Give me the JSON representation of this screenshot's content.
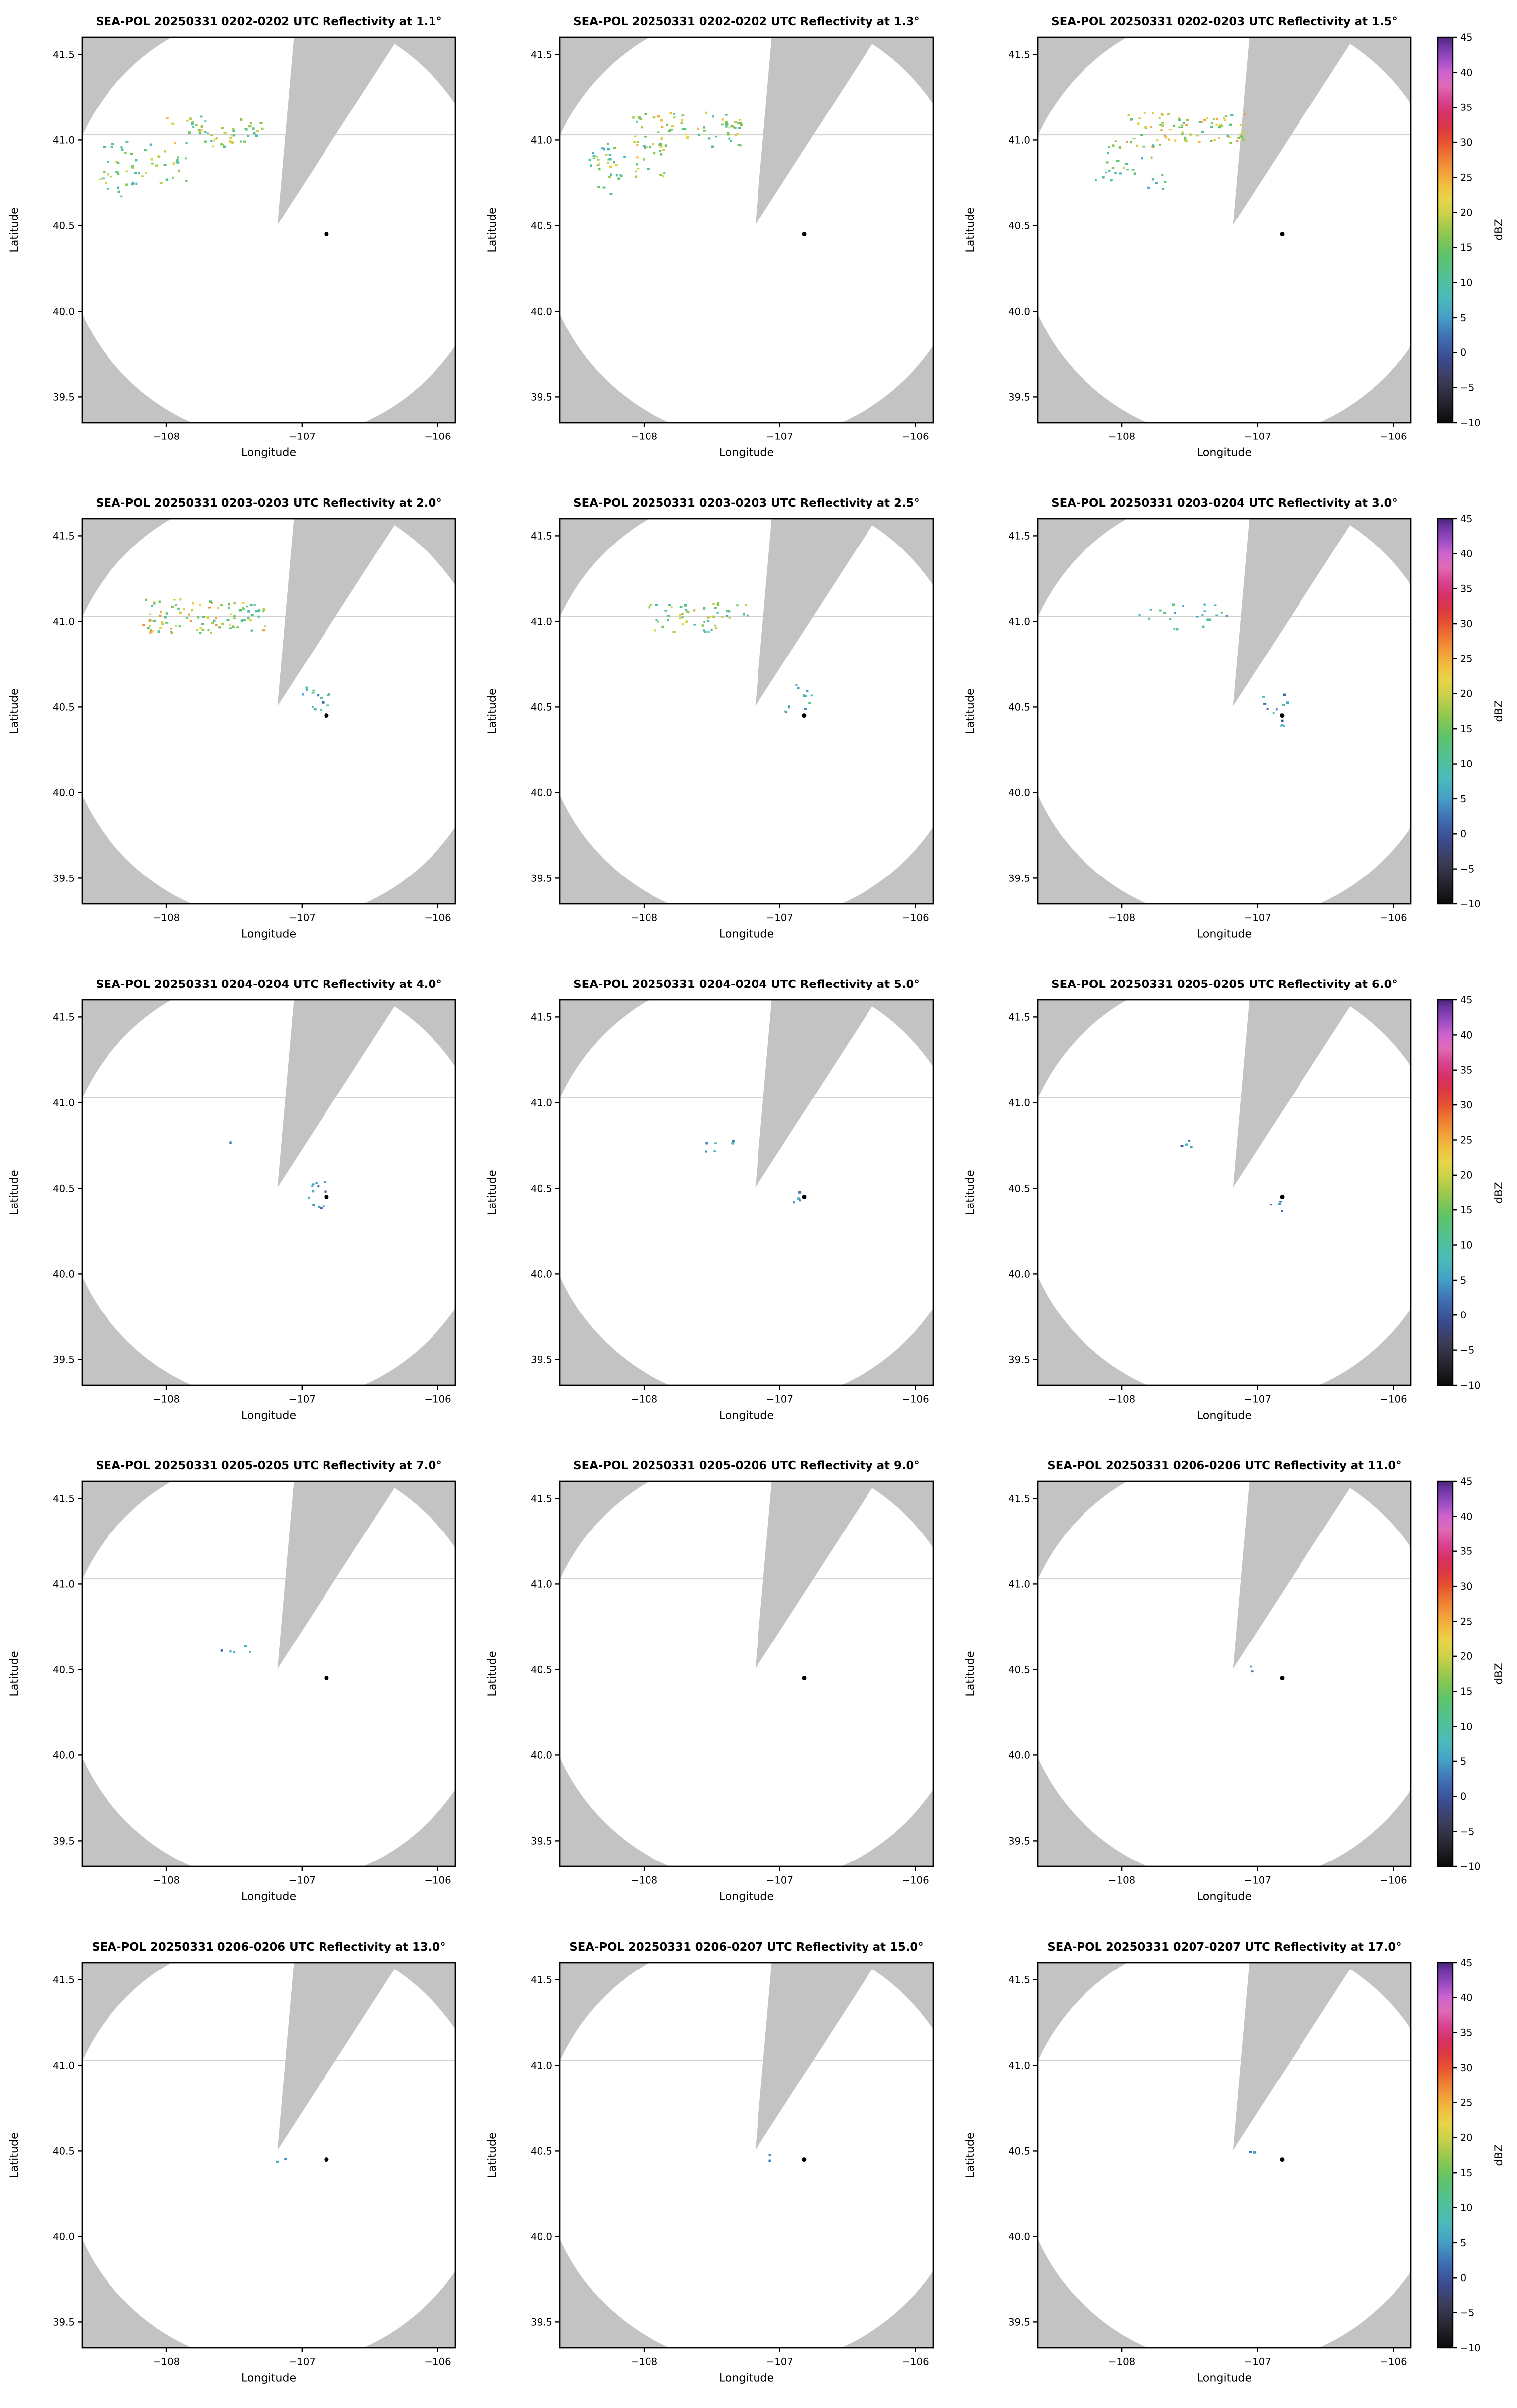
{
  "colors": {
    "panel_bg": "#c3c3c3",
    "coverage": "#ffffff",
    "frame": "#000000",
    "text": "#000000",
    "site_marker": "#000000",
    "map_line": "#d2d2d2"
  },
  "chart_data": {
    "type": "heatmap",
    "description": "SEA-POL radar PPI reflectivity, 15 elevation-angle panels (5 rows x 3 cols), gray background outside circular coverage area with a blocked wedge sector toward the NNE, black site marker dot in each panel",
    "layout": {
      "rows": 5,
      "cols": 3,
      "legend_position": "right-of-each-row"
    },
    "axes": {
      "xlabel": "Longitude",
      "ylabel": "Latitude",
      "xlim": [
        -108.62,
        -105.87
      ],
      "ylim": [
        39.35,
        41.6
      ],
      "xticks": [
        -108,
        -107,
        -106
      ],
      "xtick_labels": [
        "−108",
        "−107",
        "−106"
      ],
      "yticks": [
        39.5,
        40.0,
        40.5,
        41.0,
        41.5
      ],
      "ytick_labels": [
        "39.5",
        "40.0",
        "40.5",
        "41.0",
        "41.5"
      ]
    },
    "radar": {
      "coverage_center_lon": -107.18,
      "coverage_center_lat": 40.505,
      "coverage_radius_lon_deg": 1.58,
      "coverage_radius_lat_deg": 1.26,
      "blocked_sector_azimuth_deg": [
        5,
        33
      ],
      "site_lon": -106.82,
      "site_lat": 40.45,
      "map_line_lat": 41.03
    },
    "colorbar": {
      "label": "dBZ",
      "min": -10,
      "max": 45,
      "ticks": [
        45,
        40,
        35,
        30,
        25,
        20,
        15,
        10,
        5,
        0,
        -5,
        -10
      ],
      "tick_labels": [
        "45",
        "40",
        "35",
        "30",
        "25",
        "20",
        "15",
        "10",
        "5",
        "0",
        "−5",
        "−10"
      ],
      "stops": [
        {
          "v": -10,
          "c": "#0a0a0a"
        },
        {
          "v": -7,
          "c": "#262630"
        },
        {
          "v": -4,
          "c": "#3c3c58"
        },
        {
          "v": -1,
          "c": "#3b4b8e"
        },
        {
          "v": 2,
          "c": "#3f6cb4"
        },
        {
          "v": 5,
          "c": "#459fc6"
        },
        {
          "v": 8,
          "c": "#4bbcba"
        },
        {
          "v": 11,
          "c": "#52c193"
        },
        {
          "v": 14,
          "c": "#5ec46a"
        },
        {
          "v": 16,
          "c": "#80c655"
        },
        {
          "v": 18,
          "c": "#a7ca4c"
        },
        {
          "v": 20,
          "c": "#cdd14a"
        },
        {
          "v": 22,
          "c": "#e8d44a"
        },
        {
          "v": 24,
          "c": "#f2bc40"
        },
        {
          "v": 26,
          "c": "#f29c3a"
        },
        {
          "v": 28,
          "c": "#ee7a33"
        },
        {
          "v": 30,
          "c": "#e7532f"
        },
        {
          "v": 32,
          "c": "#dd3843"
        },
        {
          "v": 34,
          "c": "#d63166"
        },
        {
          "v": 36,
          "c": "#d84391"
        },
        {
          "v": 38,
          "c": "#e06ab4"
        },
        {
          "v": 40,
          "c": "#cf64cf"
        },
        {
          "v": 42,
          "c": "#9a4bc4"
        },
        {
          "v": 44,
          "c": "#6b34a0"
        },
        {
          "v": 45,
          "c": "#4b2478"
        }
      ]
    },
    "panels": [
      {
        "title": "SEA-POL 20250331 0202-0202 UTC Reflectivity at 1.1°",
        "echo_clusters": [
          {
            "lon": -107.7,
            "lat": 41.05,
            "w": 0.3,
            "h": 0.09,
            "n": 45,
            "dbz": [
              8,
              24
            ]
          },
          {
            "lon": -107.38,
            "lat": 41.06,
            "w": 0.1,
            "h": 0.05,
            "n": 12,
            "dbz": [
              8,
              20
            ]
          },
          {
            "lon": -108.22,
            "lat": 40.85,
            "w": 0.28,
            "h": 0.14,
            "n": 40,
            "dbz": [
              8,
              22
            ]
          },
          {
            "lon": -107.95,
            "lat": 40.83,
            "w": 0.1,
            "h": 0.07,
            "n": 10,
            "dbz": [
              8,
              18
            ]
          },
          {
            "lon": -108.28,
            "lat": 40.71,
            "w": 0.08,
            "h": 0.04,
            "n": 6,
            "dbz": [
              5,
              15
            ]
          }
        ]
      },
      {
        "title": "SEA-POL 20250331 0202-0202 UTC Reflectivity at 1.3°",
        "echo_clusters": [
          {
            "lon": -107.68,
            "lat": 41.06,
            "w": 0.4,
            "h": 0.1,
            "n": 60,
            "dbz": [
              8,
              26
            ]
          },
          {
            "lon": -108.1,
            "lat": 40.88,
            "w": 0.3,
            "h": 0.12,
            "n": 40,
            "dbz": [
              8,
              24
            ]
          },
          {
            "lon": -108.25,
            "lat": 40.74,
            "w": 0.1,
            "h": 0.06,
            "n": 8,
            "dbz": [
              5,
              15
            ]
          },
          {
            "lon": -107.35,
            "lat": 41.08,
            "w": 0.08,
            "h": 0.05,
            "n": 8,
            "dbz": [
              8,
              18
            ]
          },
          {
            "lon": -108.33,
            "lat": 40.93,
            "w": 0.08,
            "h": 0.05,
            "n": 8,
            "dbz": [
              5,
              15
            ]
          }
        ]
      },
      {
        "title": "SEA-POL 20250331 0202-0203 UTC Reflectivity at 1.5°",
        "echo_clusters": [
          {
            "lon": -107.52,
            "lat": 41.06,
            "w": 0.45,
            "h": 0.1,
            "n": 85,
            "dbz": [
              10,
              28
            ]
          },
          {
            "lon": -107.95,
            "lat": 40.9,
            "w": 0.18,
            "h": 0.1,
            "n": 18,
            "dbz": [
              8,
              20
            ]
          },
          {
            "lon": -108.12,
            "lat": 40.8,
            "w": 0.08,
            "h": 0.05,
            "n": 6,
            "dbz": [
              5,
              15
            ]
          },
          {
            "lon": -107.75,
            "lat": 40.75,
            "w": 0.08,
            "h": 0.05,
            "n": 6,
            "dbz": [
              5,
              15
            ]
          }
        ]
      },
      {
        "title": "SEA-POL 20250331 0203-0203 UTC Reflectivity at 2.0°",
        "echo_clusters": [
          {
            "lon": -107.72,
            "lat": 41.03,
            "w": 0.45,
            "h": 0.1,
            "n": 95,
            "dbz": [
              10,
              28
            ]
          },
          {
            "lon": -107.38,
            "lat": 41.05,
            "w": 0.08,
            "h": 0.05,
            "n": 8,
            "dbz": [
              8,
              18
            ]
          },
          {
            "lon": -106.88,
            "lat": 40.55,
            "w": 0.12,
            "h": 0.08,
            "n": 14,
            "dbz": [
              2,
              14
            ]
          }
        ]
      },
      {
        "title": "SEA-POL 20250331 0203-0203 UTC Reflectivity at 2.5°",
        "echo_clusters": [
          {
            "lon": -107.6,
            "lat": 41.02,
            "w": 0.38,
            "h": 0.09,
            "n": 55,
            "dbz": [
              6,
              22
            ]
          },
          {
            "lon": -106.88,
            "lat": 40.55,
            "w": 0.12,
            "h": 0.08,
            "n": 12,
            "dbz": [
              2,
              14
            ]
          }
        ]
      },
      {
        "title": "SEA-POL 20250331 0203-0204 UTC Reflectivity at 3.0°",
        "echo_clusters": [
          {
            "lon": -107.55,
            "lat": 41.03,
            "w": 0.35,
            "h": 0.08,
            "n": 22,
            "dbz": [
              4,
              16
            ]
          },
          {
            "lon": -106.88,
            "lat": 40.52,
            "w": 0.1,
            "h": 0.06,
            "n": 8,
            "dbz": [
              0,
              12
            ]
          },
          {
            "lon": -106.84,
            "lat": 40.42,
            "w": 0.06,
            "h": 0.04,
            "n": 5,
            "dbz": [
              0,
              10
            ]
          }
        ]
      },
      {
        "title": "SEA-POL 20250331 0204-0204 UTC Reflectivity at 4.0°",
        "echo_clusters": [
          {
            "lon": -106.9,
            "lat": 40.46,
            "w": 0.1,
            "h": 0.09,
            "n": 12,
            "dbz": [
              0,
              8
            ]
          },
          {
            "lon": -107.55,
            "lat": 40.78,
            "w": 0.04,
            "h": 0.02,
            "n": 2,
            "dbz": [
              0,
              6
            ]
          }
        ]
      },
      {
        "title": "SEA-POL 20250331 0204-0204 UTC Reflectivity at 5.0°",
        "echo_clusters": [
          {
            "lon": -107.48,
            "lat": 40.75,
            "w": 0.14,
            "h": 0.05,
            "n": 6,
            "dbz": [
              2,
              10
            ]
          },
          {
            "lon": -106.9,
            "lat": 40.44,
            "w": 0.05,
            "h": 0.04,
            "n": 4,
            "dbz": [
              0,
              8
            ]
          }
        ]
      },
      {
        "title": "SEA-POL 20250331 0205-0205 UTC Reflectivity at 6.0°",
        "echo_clusters": [
          {
            "lon": -107.53,
            "lat": 40.75,
            "w": 0.08,
            "h": 0.04,
            "n": 4,
            "dbz": [
              0,
              8
            ]
          },
          {
            "lon": -106.87,
            "lat": 40.4,
            "w": 0.05,
            "h": 0.04,
            "n": 4,
            "dbz": [
              0,
              8
            ]
          }
        ]
      },
      {
        "title": "SEA-POL 20250331 0205-0205 UTC Reflectivity at 7.0°",
        "echo_clusters": [
          {
            "lon": -107.48,
            "lat": 40.65,
            "w": 0.14,
            "h": 0.05,
            "n": 5,
            "dbz": [
              0,
              8
            ]
          }
        ]
      },
      {
        "title": "SEA-POL 20250331 0205-0206 UTC Reflectivity at 9.0°",
        "echo_clusters": []
      },
      {
        "title": "SEA-POL 20250331 0206-0206 UTC Reflectivity at 11.0°",
        "echo_clusters": [
          {
            "lon": -107.05,
            "lat": 40.5,
            "w": 0.04,
            "h": 0.03,
            "n": 2,
            "dbz": [
              0,
              6
            ]
          }
        ]
      },
      {
        "title": "SEA-POL 20250331 0206-0206 UTC Reflectivity at 13.0°",
        "echo_clusters": [
          {
            "lon": -107.15,
            "lat": 40.46,
            "w": 0.04,
            "h": 0.03,
            "n": 2,
            "dbz": [
              0,
              6
            ]
          }
        ]
      },
      {
        "title": "SEA-POL 20250331 0206-0207 UTC Reflectivity at 15.0°",
        "echo_clusters": [
          {
            "lon": -107.05,
            "lat": 40.45,
            "w": 0.04,
            "h": 0.03,
            "n": 2,
            "dbz": [
              0,
              6
            ]
          }
        ]
      },
      {
        "title": "SEA-POL 20250331 0207-0207 UTC Reflectivity at 17.0°",
        "echo_clusters": [
          {
            "lon": -107.02,
            "lat": 40.47,
            "w": 0.04,
            "h": 0.03,
            "n": 2,
            "dbz": [
              0,
              6
            ]
          }
        ]
      }
    ]
  }
}
